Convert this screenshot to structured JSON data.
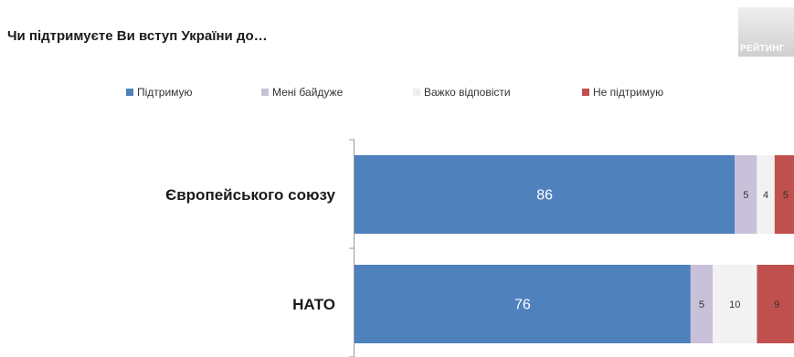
{
  "title": "Чи підтримуєте Ви вступ України до…",
  "logo": {
    "text": "РЕЙТИНГ"
  },
  "colors": {
    "support": "#4f81bd",
    "indifferent": "#c9c1da",
    "hard_to_say": "#f2f2f2",
    "not_support": "#c0504d"
  },
  "chart_data": {
    "type": "bar",
    "orientation": "horizontal",
    "stacked": true,
    "categories": [
      "Європейського союзу",
      "НАТО"
    ],
    "series": [
      {
        "name": "Підтримую",
        "values": [
          86,
          76
        ]
      },
      {
        "name": "Мені байдуже",
        "values": [
          5,
          5
        ]
      },
      {
        "name": "Важко відповісти",
        "values": [
          4,
          10
        ]
      },
      {
        "name": "Не підтримую",
        "values": [
          5,
          9
        ]
      }
    ],
    "legend_position": "top",
    "grid": false
  }
}
